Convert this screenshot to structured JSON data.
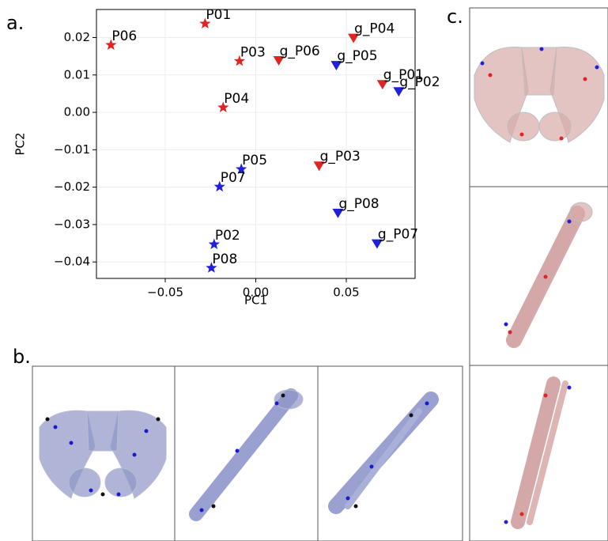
{
  "panel_labels": [
    "a.",
    "b.",
    "c."
  ],
  "chart_data": {
    "type": "scatter",
    "xlabel": "PC1",
    "ylabel": "PC2",
    "xlim": [
      -0.088,
      0.088
    ],
    "ylim": [
      -0.0444,
      0.0275
    ],
    "xticks": [
      {
        "value": -0.05,
        "label": "−0.05"
      },
      {
        "value": 0,
        "label": "0.00"
      },
      0.05
    ],
    "yticks": [
      0.02,
      0.01,
      {
        "value": 0,
        "label": "0.00"
      },
      {
        "value": -0.01,
        "label": "−0.01"
      },
      {
        "value": -0.02,
        "label": "−0.02"
      },
      {
        "value": -0.03,
        "label": "−0.03"
      },
      {
        "value": -0.04,
        "label": "−0.04"
      }
    ],
    "grid": true,
    "series": [
      {
        "color": "#e02424",
        "marker": "star",
        "labels": [
          "P06",
          "P01",
          "P03",
          "P04"
        ],
        "x": [
          -0.08,
          -0.028,
          -0.009,
          -0.018
        ],
        "values": [
          0.018,
          0.0237,
          0.0137,
          0.0013
        ]
      },
      {
        "color": "#2020d8",
        "marker": "star",
        "labels": [
          "P05",
          "P07",
          "P02",
          "P08"
        ],
        "x": [
          -0.008,
          -0.02,
          -0.023,
          -0.0245
        ],
        "values": [
          -0.0152,
          -0.0199,
          -0.0353,
          -0.0416
        ]
      },
      {
        "color": "#e02424",
        "marker": "triangle-down",
        "labels": [
          "g_P06",
          "g_P04",
          "g_P01",
          "g_P03"
        ],
        "x": [
          0.0127,
          0.054,
          0.07,
          0.035
        ],
        "values": [
          0.014,
          0.02,
          0.0076,
          -0.0142
        ]
      },
      {
        "color": "#2020d8",
        "marker": "triangle-down",
        "labels": [
          "g_P05",
          "g_P02",
          "g_P08",
          "g_P07"
        ],
        "x": [
          0.0445,
          0.079,
          0.0454,
          0.067
        ],
        "values": [
          0.0127,
          0.0057,
          -0.0268,
          -0.035
        ]
      }
    ]
  }
}
